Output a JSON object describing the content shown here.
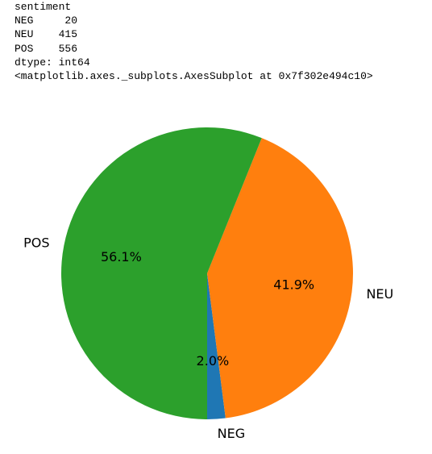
{
  "output": {
    "lines": [
      "sentiment",
      "NEG     20",
      "NEU    415",
      "POS    556",
      "dtype: int64",
      "<matplotlib.axes._subplots.AxesSubplot at 0x7f302e494c10>"
    ]
  },
  "chart_data": {
    "type": "pie",
    "categories": [
      "NEG",
      "NEU",
      "POS"
    ],
    "values": [
      20,
      415,
      556
    ],
    "percent_labels": [
      "2.0%",
      "41.9%",
      "56.1%"
    ],
    "colors": [
      "#1f77b4",
      "#ff7f0e",
      "#2ca02c"
    ],
    "start_angle_deg": 270,
    "direction": "counterclockwise"
  }
}
